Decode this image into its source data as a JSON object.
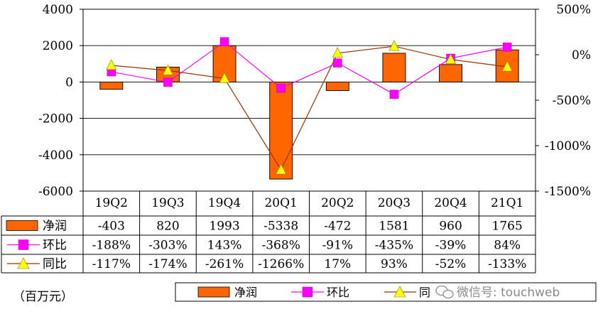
{
  "chart_data": {
    "type": "bar+line",
    "categories": [
      "19Q2",
      "19Q3",
      "19Q4",
      "20Q1",
      "20Q2",
      "20Q3",
      "20Q4",
      "21Q1"
    ],
    "left_axis": {
      "ylim": [
        -6000,
        4000
      ],
      "ticks": [
        "4000",
        "2000",
        "0",
        "-2000",
        "-4000",
        "-6000"
      ],
      "tick_values": [
        4000,
        2000,
        0,
        -2000,
        -4000,
        -6000
      ]
    },
    "right_axis": {
      "ylim": [
        -1500,
        500
      ],
      "ticks": [
        "500%",
        "0%",
        "-500%",
        "-1000%",
        "-1500%"
      ],
      "tick_values": [
        500,
        0,
        -500,
        -1000,
        -1500
      ]
    },
    "series": [
      {
        "name": "净润",
        "kind": "bar",
        "axis": "left",
        "values": [
          -403,
          820,
          1993,
          -5338,
          -472,
          1581,
          960,
          1765
        ],
        "labels": [
          "-403",
          "820",
          "1993",
          "-5338",
          "-472",
          "1581",
          "960",
          "1765"
        ],
        "color": "#ff6600"
      },
      {
        "name": "环比",
        "kind": "line",
        "marker": "square",
        "axis": "right",
        "values": [
          -188,
          -303,
          143,
          -368,
          -91,
          -435,
          -39,
          84
        ],
        "labels": [
          "-188%",
          "-303%",
          "143%",
          "-368%",
          "-91%",
          "-435%",
          "-39%",
          "84%"
        ],
        "color": "#ff00ff"
      },
      {
        "name": "同比",
        "kind": "line",
        "marker": "triangle",
        "axis": "right",
        "values": [
          -117,
          -174,
          -261,
          -1266,
          17,
          93,
          -52,
          -133
        ],
        "labels": [
          "-117%",
          "-174%",
          "-261%",
          "-1266%",
          "17%",
          "93%",
          "-52%",
          "-133%"
        ],
        "color": "#ffff00",
        "line_color": "#993300"
      }
    ],
    "unit_label": "（百万元）",
    "legend_placement": "bottom",
    "grid": true
  },
  "legend": {
    "items": [
      "净润",
      "环比",
      "同比"
    ]
  },
  "watermark": "微信号: touchweb"
}
